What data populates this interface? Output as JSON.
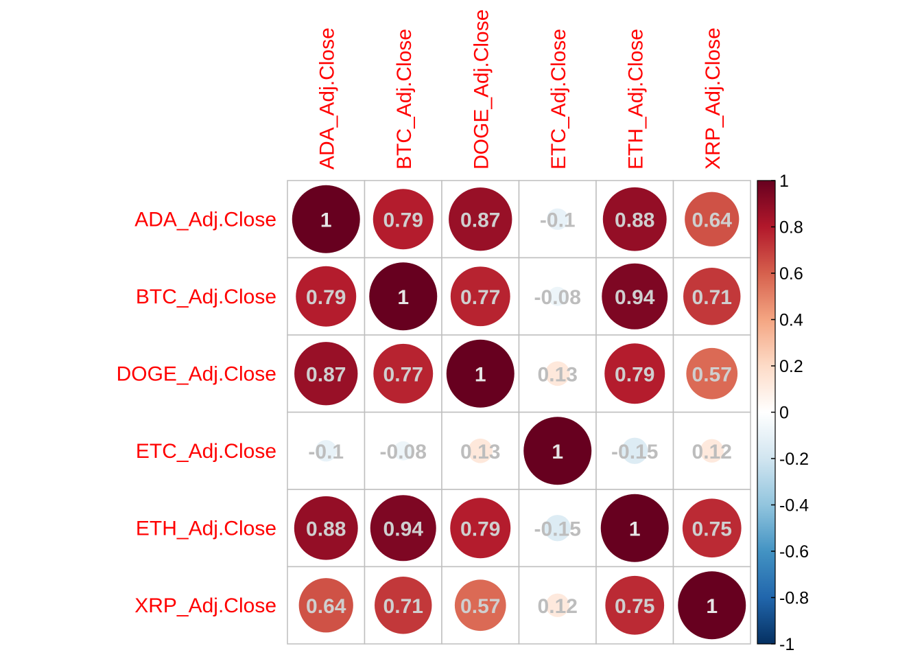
{
  "chart_data": {
    "type": "heatmap",
    "title": "",
    "labels": [
      "ADA_Adj.Close",
      "BTC_Adj.Close",
      "DOGE_Adj.Close",
      "ETC_Adj.Close",
      "ETH_Adj.Close",
      "XRP_Adj.Close"
    ],
    "matrix": [
      [
        1,
        0.79,
        0.87,
        -0.1,
        0.88,
        0.64
      ],
      [
        0.79,
        1,
        0.77,
        -0.08,
        0.94,
        0.71
      ],
      [
        0.87,
        0.77,
        1,
        0.13,
        0.79,
        0.57
      ],
      [
        -0.1,
        -0.08,
        0.13,
        1,
        -0.15,
        0.12
      ],
      [
        0.88,
        0.94,
        0.79,
        -0.15,
        1,
        0.75
      ],
      [
        0.64,
        0.71,
        0.57,
        0.12,
        0.75,
        1
      ]
    ],
    "cell_text": [
      [
        "1",
        "0.79",
        "0.87",
        "-0.1",
        "0.88",
        "0.64"
      ],
      [
        "0.79",
        "1",
        "0.77",
        "-0.08",
        "0.94",
        "0.71"
      ],
      [
        "0.87",
        "0.77",
        "1",
        "0.13",
        "0.79",
        "0.57"
      ],
      [
        "-0.1",
        "-0.08",
        "0.13",
        "1",
        "-0.15",
        "0.12"
      ],
      [
        "0.88",
        "0.94",
        "0.79",
        "-0.15",
        "1",
        "0.75"
      ],
      [
        "0.64",
        "0.71",
        "0.57",
        "0.12",
        "0.75",
        "1"
      ]
    ],
    "colorbar": {
      "range": [
        -1,
        1
      ],
      "ticks": [
        "1",
        "0.8",
        "0.6",
        "0.4",
        "0.2",
        "0",
        "-0.2",
        "-0.4",
        "-0.6",
        "-0.8",
        "-1"
      ],
      "colors": [
        "#67001F",
        "#B2182B",
        "#D6604D",
        "#F4A582",
        "#FDDBC7",
        "#FFFFFF",
        "#D1E5F0",
        "#92C5DE",
        "#4393C3",
        "#2166AC",
        "#053061"
      ]
    },
    "label_color": "#FF0000",
    "grid_color": "#BEBEBE"
  }
}
